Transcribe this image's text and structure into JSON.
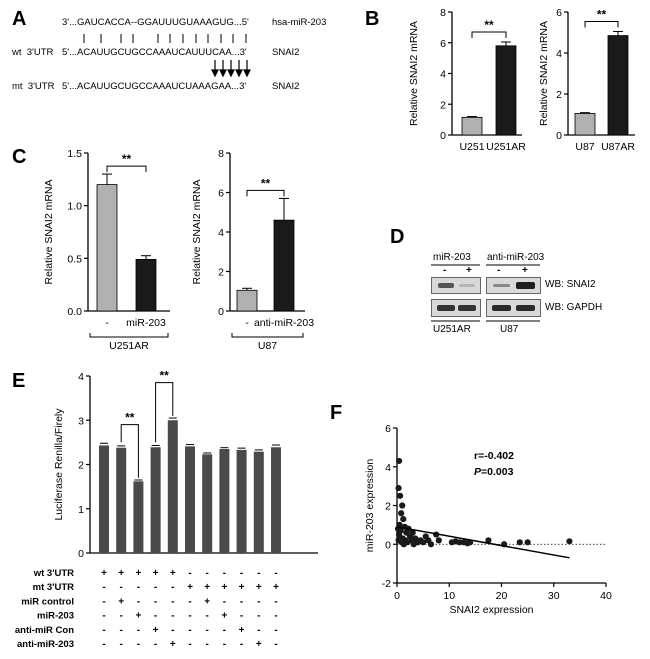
{
  "panels": {
    "A": {
      "letter": "A",
      "rows": [
        {
          "prefix": "",
          "seq": "3'...GAUCACCA--GGAUUUGUAAAGUG...5'",
          "name": "hsa-miR-203"
        },
        {
          "prefix": "wt  3'UTR",
          "seq": "5'...ACAUUGCUGCCAAAUCAUUUCAA...3'",
          "name": "SNAI2"
        },
        {
          "prefix": "mt  3'UTR",
          "seq": "5'...ACAUUGCUGCCAAAUCUAAAGAA...3'",
          "name": "SNAI2"
        }
      ]
    },
    "B": {
      "letter": "B"
    },
    "C": {
      "letter": "C"
    },
    "D": {
      "letter": "D",
      "group_labels": [
        "miR-203",
        "anti-miR-203"
      ],
      "lane_signs": [
        "-",
        "+",
        "-",
        "+"
      ],
      "wb_labels": [
        "WB: SNAI2",
        "WB: GAPDH"
      ],
      "cell_labels": [
        "U251AR",
        "U87"
      ]
    },
    "E": {
      "letter": "E"
    },
    "F": {
      "letter": "F"
    }
  },
  "chart_data": [
    {
      "id": "B1",
      "type": "bar",
      "categories": [
        "U251",
        "U251AR"
      ],
      "values": [
        1.15,
        5.8
      ],
      "errors": [
        0.05,
        0.25
      ],
      "colors": [
        "#b0b0b0",
        "#1a1a1a"
      ],
      "ylabel": "Relative SNAI2 mRNA",
      "ylim": [
        0,
        8
      ],
      "yticks": [
        0,
        2,
        4,
        6,
        8
      ],
      "significance": "**"
    },
    {
      "id": "B2",
      "type": "bar",
      "categories": [
        "U87",
        "U87AR"
      ],
      "values": [
        1.05,
        4.85
      ],
      "errors": [
        0.04,
        0.2
      ],
      "colors": [
        "#b0b0b0",
        "#1a1a1a"
      ],
      "ylabel": "Relative SNAI2 mRNA",
      "ylim": [
        0,
        6
      ],
      "yticks": [
        0,
        2,
        4,
        6
      ],
      "significance": "**"
    },
    {
      "id": "C1",
      "type": "bar",
      "categories": [
        "-",
        "miR-203"
      ],
      "values": [
        1.2,
        0.49
      ],
      "errors": [
        0.1,
        0.035
      ],
      "colors": [
        "#b0b0b0",
        "#1a1a1a"
      ],
      "ylabel": "Relative SNAI2 mRNA",
      "ylim": [
        0,
        1.5
      ],
      "yticks": [
        0.0,
        0.5,
        1.0,
        1.5
      ],
      "group_label": "U251AR",
      "significance": "**"
    },
    {
      "id": "C2",
      "type": "bar",
      "categories": [
        "-",
        "anti-miR-203"
      ],
      "values": [
        1.05,
        4.6
      ],
      "errors": [
        0.1,
        1.1
      ],
      "colors": [
        "#b0b0b0",
        "#1a1a1a"
      ],
      "ylabel": "Relative SNAI2 mRNA",
      "ylim": [
        0,
        8
      ],
      "yticks": [
        0,
        2,
        4,
        6,
        8
      ],
      "group_label": "U87",
      "significance": "**"
    },
    {
      "id": "E",
      "type": "bar",
      "values": [
        2.43,
        2.38,
        1.62,
        2.39,
        3.0,
        2.41,
        2.23,
        2.35,
        2.33,
        2.29,
        2.39
      ],
      "errors": [
        0.05,
        0.04,
        0.03,
        0.04,
        0.05,
        0.04,
        0.03,
        0.03,
        0.04,
        0.04,
        0.05
      ],
      "color": "#4a4a4a",
      "ylabel": "Luciferase Renilla/Firely",
      "ylim": [
        0,
        4
      ],
      "yticks": [
        0,
        1,
        2,
        3,
        4
      ],
      "significance": "**",
      "condition_rows": [
        {
          "label": "wt 3'UTR",
          "signs": [
            "+",
            "+",
            "+",
            "+",
            "+",
            "-",
            "-",
            "-",
            "-",
            "-",
            "-"
          ]
        },
        {
          "label": "mt 3'UTR",
          "signs": [
            "-",
            "-",
            "-",
            "-",
            "-",
            "+",
            "+",
            "+",
            "+",
            "+",
            "+"
          ]
        },
        {
          "label": "miR control",
          "signs": [
            "-",
            "+",
            "-",
            "-",
            "-",
            "-",
            "+",
            "-",
            "-",
            "-",
            "-"
          ]
        },
        {
          "label": "miR-203",
          "signs": [
            "-",
            "-",
            "+",
            "-",
            "-",
            "-",
            "-",
            "+",
            "-",
            "-",
            "-"
          ]
        },
        {
          "label": "anti-miR Con",
          "signs": [
            "-",
            "-",
            "-",
            "+",
            "-",
            "-",
            "-",
            "-",
            "+",
            "-",
            "-"
          ]
        },
        {
          "label": "anti-miR-203",
          "signs": [
            "-",
            "-",
            "-",
            "-",
            "+",
            "-",
            "-",
            "-",
            "-",
            "+",
            "-"
          ]
        }
      ]
    },
    {
      "id": "F",
      "type": "scatter",
      "xlabel": "SNAI2 expression",
      "ylabel": "miR-203 expression",
      "xlim": [
        0,
        40
      ],
      "ylim": [
        -2,
        6
      ],
      "xticks": [
        0,
        10,
        20,
        30,
        40
      ],
      "yticks": [
        -2,
        0,
        2,
        4,
        6
      ],
      "annotation_r": "r=-0.402",
      "annotation_p_label": "P",
      "annotation_p_value": "=0.003",
      "points": [
        [
          0.4,
          4.3
        ],
        [
          0.3,
          2.9
        ],
        [
          0.6,
          2.5
        ],
        [
          1.0,
          2.0
        ],
        [
          0.8,
          1.6
        ],
        [
          1.2,
          1.3
        ],
        [
          0.5,
          1.0
        ],
        [
          1.5,
          0.9
        ],
        [
          0.2,
          0.8
        ],
        [
          0.7,
          0.7
        ],
        [
          1.8,
          0.6
        ],
        [
          2.2,
          0.8
        ],
        [
          0.4,
          0.5
        ],
        [
          2.5,
          0.4
        ],
        [
          3.0,
          0.6
        ],
        [
          1.1,
          0.3
        ],
        [
          0.9,
          0.1
        ],
        [
          1.6,
          0.2
        ],
        [
          2.8,
          0.2
        ],
        [
          3.5,
          0.3
        ],
        [
          4.0,
          0.1
        ],
        [
          0.3,
          0.2
        ],
        [
          1.3,
          0.0
        ],
        [
          2.0,
          0.1
        ],
        [
          3.2,
          0.0
        ],
        [
          4.5,
          0.2
        ],
        [
          5.5,
          0.4
        ],
        [
          5.0,
          0.1
        ],
        [
          6.0,
          0.2
        ],
        [
          6.5,
          0.0
        ],
        [
          7.5,
          0.5
        ],
        [
          8.0,
          0.2
        ],
        [
          10.5,
          0.1
        ],
        [
          11.2,
          0.15
        ],
        [
          12.0,
          0.1
        ],
        [
          12.8,
          0.1
        ],
        [
          13.5,
          0.05
        ],
        [
          14.0,
          0.1
        ],
        [
          17.5,
          0.2
        ],
        [
          20.5,
          0.0
        ],
        [
          23.5,
          0.1
        ],
        [
          25.0,
          0.1
        ],
        [
          33.0,
          0.15
        ]
      ],
      "fit_line": [
        [
          0,
          0.9
        ],
        [
          33,
          -0.7
        ]
      ],
      "zero_line": true
    }
  ]
}
